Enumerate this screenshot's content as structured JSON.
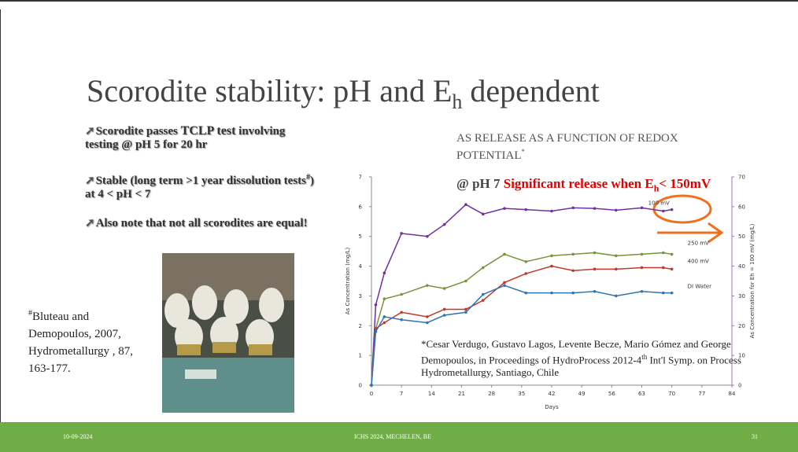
{
  "slide": {
    "title": [
      "Scorodite stability: pH and E",
      "h",
      " dependent"
    ],
    "bullet_symbol": "➚",
    "bullets": [
      [
        "Scorodite passes ",
        "TCLP test",
        " involving testing @ pH 5 for 20 hr"
      ],
      [
        "Stable (long term >1 year dissolution tests",
        "#",
        ") at  4 < pH < 7"
      ],
      [
        "Also note that not all scorodites are equal!"
      ]
    ],
    "reference": [
      "#",
      "Bluteau and Demopoulos, 2007, Hydrometallurgy , 87, 163-177."
    ],
    "footer": {
      "date": "10-09-2024",
      "center": "ICHS 2024, MECHELEN, BE",
      "page": "31"
    }
  },
  "chart_data": {
    "type": "line",
    "title": [
      "AS RELEASE AS A FUNCTION OF REDOX POTENTIAL",
      "*"
    ],
    "annotation": [
      "@ pH 7 ",
      "Significant release when E",
      "h",
      "< 150mV"
    ],
    "citation": [
      "*Cesar Verdugo, Gustavo Lagos, Levente Becze, Mario Gómez and George Demopoulos, in Proceedings of HydroProcess 2012-4",
      "th",
      " Int'l Symp. on Process Hydrometallurgy, Santiago, Chile"
    ],
    "x_label": "Days",
    "y_label": "As Concentration (mg/L)",
    "y2_label": "As Concentration for Eh = 100 mV (mg/L)",
    "x": [
      0,
      1,
      3,
      7,
      13,
      17,
      22,
      26,
      31,
      36,
      42,
      47,
      52,
      57,
      63,
      68,
      70
    ],
    "xlim": [
      0,
      84
    ],
    "xticks": [
      0,
      7,
      14,
      21,
      28,
      35,
      42,
      49,
      56,
      63,
      70,
      77,
      84
    ],
    "ylim": [
      0,
      7
    ],
    "yticks": [
      0,
      1,
      2,
      3,
      4,
      5,
      6,
      7
    ],
    "y2lim": [
      0,
      70
    ],
    "y2ticks": [
      0,
      10,
      20,
      30,
      40,
      50,
      60,
      70
    ],
    "series": [
      {
        "name": "100 mV",
        "color": "#7030a0",
        "axis": "y2",
        "values": [
          0,
          27,
          37.7,
          51,
          50,
          54,
          60.7,
          57.5,
          59.4,
          59,
          58.5,
          59.6,
          59.4,
          58.8,
          59.6,
          58.5,
          59
        ]
      },
      {
        "name": "250 mV",
        "color": "#77933c",
        "values": [
          0,
          1.9,
          2.9,
          3.05,
          3.35,
          3.25,
          3.5,
          3.95,
          4.4,
          4.15,
          4.35,
          4.4,
          4.45,
          4.35,
          4.4,
          4.45,
          4.4
        ]
      },
      {
        "name": "400 mV",
        "color": "#c0392b",
        "values": [
          0,
          1.9,
          2.1,
          2.45,
          2.3,
          2.55,
          2.55,
          2.85,
          3.45,
          3.75,
          4.0,
          3.85,
          3.9,
          3.9,
          3.95,
          3.95,
          3.9
        ]
      },
      {
        "name": "DI Water",
        "color": "#2e75b6",
        "values": [
          0,
          1.8,
          2.3,
          2.2,
          2.1,
          2.35,
          2.45,
          3.05,
          3.35,
          3.1,
          3.1,
          3.1,
          3.15,
          3.0,
          3.15,
          3.1,
          3.1
        ]
      }
    ]
  }
}
